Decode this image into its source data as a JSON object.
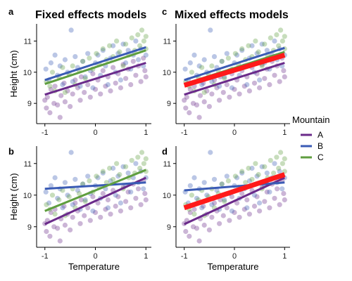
{
  "colors": {
    "A": "#6a2a8a",
    "B": "#3a5bb5",
    "C": "#5f9e3f",
    "overall": "#ff1a1a"
  },
  "legend": {
    "title": "Mountain",
    "entries": [
      {
        "key": "A",
        "label": "A"
      },
      {
        "key": "B",
        "label": "B"
      },
      {
        "key": "C",
        "label": "C"
      }
    ]
  },
  "chart_data": [
    {
      "type": "scatter",
      "panel": "a",
      "title": "Fixed effects models",
      "xlabel": "",
      "ylabel": "Height (cm)",
      "xlim": [
        -1.08,
        1.08
      ],
      "ylim": [
        8.35,
        11.55
      ],
      "xticks": [
        -1,
        0,
        1
      ],
      "yticks": [
        9,
        10,
        11
      ],
      "lines": [
        {
          "series": "A",
          "x": [
            -1,
            1
          ],
          "y": [
            9.28,
            10.3
          ]
        },
        {
          "series": "B",
          "x": [
            -1,
            1
          ],
          "y": [
            9.75,
            10.8
          ]
        },
        {
          "series": "C",
          "x": [
            -1,
            1
          ],
          "y": [
            9.62,
            10.7
          ]
        }
      ]
    },
    {
      "type": "scatter",
      "panel": "c",
      "title": "Mixed effects models",
      "xlabel": "",
      "ylabel": "",
      "xlim": [
        -1.08,
        1.08
      ],
      "ylim": [
        8.35,
        11.55
      ],
      "xticks": [
        -1,
        0,
        1
      ],
      "yticks": [
        9,
        10,
        11
      ],
      "lines": [
        {
          "series": "A",
          "x": [
            -1,
            1
          ],
          "y": [
            9.28,
            10.3
          ]
        },
        {
          "series": "B",
          "x": [
            -1,
            1
          ],
          "y": [
            9.75,
            10.78
          ]
        },
        {
          "series": "C",
          "x": [
            -1,
            1
          ],
          "y": [
            9.62,
            10.65
          ]
        },
        {
          "series": "overall",
          "x": [
            -1,
            1
          ],
          "y": [
            9.58,
            10.55
          ]
        }
      ]
    },
    {
      "type": "scatter",
      "panel": "b",
      "title": "",
      "xlabel": "Temperature",
      "ylabel": "Height (cm)",
      "xlim": [
        -1.08,
        1.08
      ],
      "ylim": [
        8.35,
        11.55
      ],
      "xticks": [
        -1,
        0,
        1
      ],
      "yticks": [
        9,
        10,
        11
      ],
      "lines": [
        {
          "series": "A",
          "x": [
            -1,
            1
          ],
          "y": [
            9.08,
            10.55
          ]
        },
        {
          "series": "B",
          "x": [
            -1,
            1
          ],
          "y": [
            10.2,
            10.4
          ]
        },
        {
          "series": "C",
          "x": [
            -1,
            1
          ],
          "y": [
            9.5,
            10.8
          ]
        }
      ]
    },
    {
      "type": "scatter",
      "panel": "d",
      "title": "",
      "xlabel": "Temperature",
      "ylabel": "",
      "xlim": [
        -1.08,
        1.08
      ],
      "ylim": [
        8.35,
        11.55
      ],
      "xticks": [
        -1,
        0,
        1
      ],
      "yticks": [
        9,
        10,
        11
      ],
      "lines": [
        {
          "series": "A",
          "x": [
            -1,
            1
          ],
          "y": [
            9.08,
            10.55
          ]
        },
        {
          "series": "B",
          "x": [
            -1,
            1
          ],
          "y": [
            10.15,
            10.4
          ]
        },
        {
          "series": "C",
          "x": [
            -1,
            1
          ],
          "y": [
            9.6,
            10.65
          ]
        },
        {
          "series": "overall",
          "x": [
            -1,
            1
          ],
          "y": [
            9.6,
            10.65
          ]
        }
      ]
    }
  ],
  "points": {
    "A": [
      [
        -1.0,
        9.1
      ],
      [
        -0.97,
        8.85
      ],
      [
        -0.95,
        9.2
      ],
      [
        -0.9,
        8.7
      ],
      [
        -0.88,
        9.45
      ],
      [
        -0.82,
        9.0
      ],
      [
        -0.8,
        9.55
      ],
      [
        -0.75,
        8.95
      ],
      [
        -0.7,
        8.55
      ],
      [
        -0.68,
        9.25
      ],
      [
        -0.62,
        9.65
      ],
      [
        -0.6,
        9.05
      ],
      [
        -0.55,
        9.4
      ],
      [
        -0.5,
        8.9
      ],
      [
        -0.45,
        9.3
      ],
      [
        -0.4,
        9.75
      ],
      [
        -0.35,
        9.5
      ],
      [
        -0.3,
        9.1
      ],
      [
        -0.28,
        9.85
      ],
      [
        -0.22,
        9.35
      ],
      [
        -0.15,
        9.6
      ],
      [
        -0.1,
        9.2
      ],
      [
        -0.05,
        9.95
      ],
      [
        0.0,
        9.45
      ],
      [
        0.05,
        9.75
      ],
      [
        0.1,
        9.3
      ],
      [
        0.15,
        10.05
      ],
      [
        0.2,
        9.55
      ],
      [
        0.25,
        9.85
      ],
      [
        0.3,
        9.4
      ],
      [
        0.35,
        10.15
      ],
      [
        0.4,
        9.65
      ],
      [
        0.45,
        9.95
      ],
      [
        0.5,
        9.5
      ],
      [
        0.55,
        10.25
      ],
      [
        0.6,
        9.8
      ],
      [
        0.65,
        10.1
      ],
      [
        0.7,
        9.6
      ],
      [
        0.75,
        10.35
      ],
      [
        0.8,
        9.9
      ],
      [
        0.85,
        10.2
      ],
      [
        0.9,
        9.7
      ],
      [
        0.95,
        10.45
      ],
      [
        0.98,
        10.05
      ],
      [
        1.0,
        9.85
      ]
    ],
    "B": [
      [
        -0.98,
        10.1
      ],
      [
        -0.92,
        9.75
      ],
      [
        -0.88,
        10.3
      ],
      [
        -0.8,
        10.55
      ],
      [
        -0.75,
        9.9
      ],
      [
        -0.7,
        10.2
      ],
      [
        -0.65,
        9.6
      ],
      [
        -0.6,
        10.4
      ],
      [
        -0.55,
        10.0
      ],
      [
        -0.48,
        11.35
      ],
      [
        -0.45,
        9.7
      ],
      [
        -0.4,
        10.5
      ],
      [
        -0.35,
        10.15
      ],
      [
        -0.3,
        9.55
      ],
      [
        -0.25,
        10.35
      ],
      [
        -0.2,
        9.85
      ],
      [
        -0.15,
        10.6
      ],
      [
        -0.1,
        10.05
      ],
      [
        -0.05,
        9.5
      ],
      [
        0.0,
        10.3
      ],
      [
        0.05,
        10.55
      ],
      [
        0.1,
        9.9
      ],
      [
        0.15,
        10.7
      ],
      [
        0.2,
        10.2
      ],
      [
        0.25,
        9.6
      ],
      [
        0.3,
        10.45
      ],
      [
        0.35,
        10.85
      ],
      [
        0.4,
        10.0
      ],
      [
        0.45,
        10.6
      ],
      [
        0.5,
        9.75
      ],
      [
        0.55,
        10.9
      ],
      [
        0.6,
        10.3
      ],
      [
        0.65,
        10.7
      ],
      [
        0.7,
        10.1
      ],
      [
        0.75,
        10.55
      ],
      [
        0.8,
        11.0
      ],
      [
        0.85,
        10.4
      ],
      [
        0.9,
        10.75
      ],
      [
        0.95,
        10.2
      ],
      [
        1.0,
        10.55
      ]
    ],
    "C": [
      [
        -0.97,
        9.7
      ],
      [
        -0.9,
        9.55
      ],
      [
        -0.85,
        10.0
      ],
      [
        -0.8,
        9.4
      ],
      [
        -0.72,
        9.85
      ],
      [
        -0.65,
        10.15
      ],
      [
        -0.6,
        9.35
      ],
      [
        -0.52,
        9.95
      ],
      [
        -0.45,
        10.2
      ],
      [
        -0.4,
        9.6
      ],
      [
        -0.32,
        10.05
      ],
      [
        -0.25,
        10.35
      ],
      [
        -0.2,
        9.8
      ],
      [
        -0.12,
        10.45
      ],
      [
        -0.05,
        10.1
      ],
      [
        0.02,
        10.6
      ],
      [
        0.08,
        10.25
      ],
      [
        0.15,
        10.75
      ],
      [
        0.22,
        10.4
      ],
      [
        0.28,
        10.85
      ],
      [
        0.35,
        10.5
      ],
      [
        0.42,
        11.0
      ],
      [
        0.48,
        10.65
      ],
      [
        0.55,
        10.2
      ],
      [
        0.6,
        10.9
      ],
      [
        0.66,
        10.55
      ],
      [
        0.72,
        11.1
      ],
      [
        0.78,
        10.7
      ],
      [
        0.84,
        11.2
      ],
      [
        0.88,
        10.85
      ],
      [
        0.92,
        11.35
      ],
      [
        0.96,
        11.0
      ],
      [
        1.0,
        11.15
      ],
      [
        1.0,
        10.75
      ]
    ]
  }
}
